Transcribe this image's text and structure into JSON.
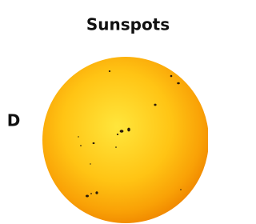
{
  "title": "Sunspots",
  "label": "D"
}
